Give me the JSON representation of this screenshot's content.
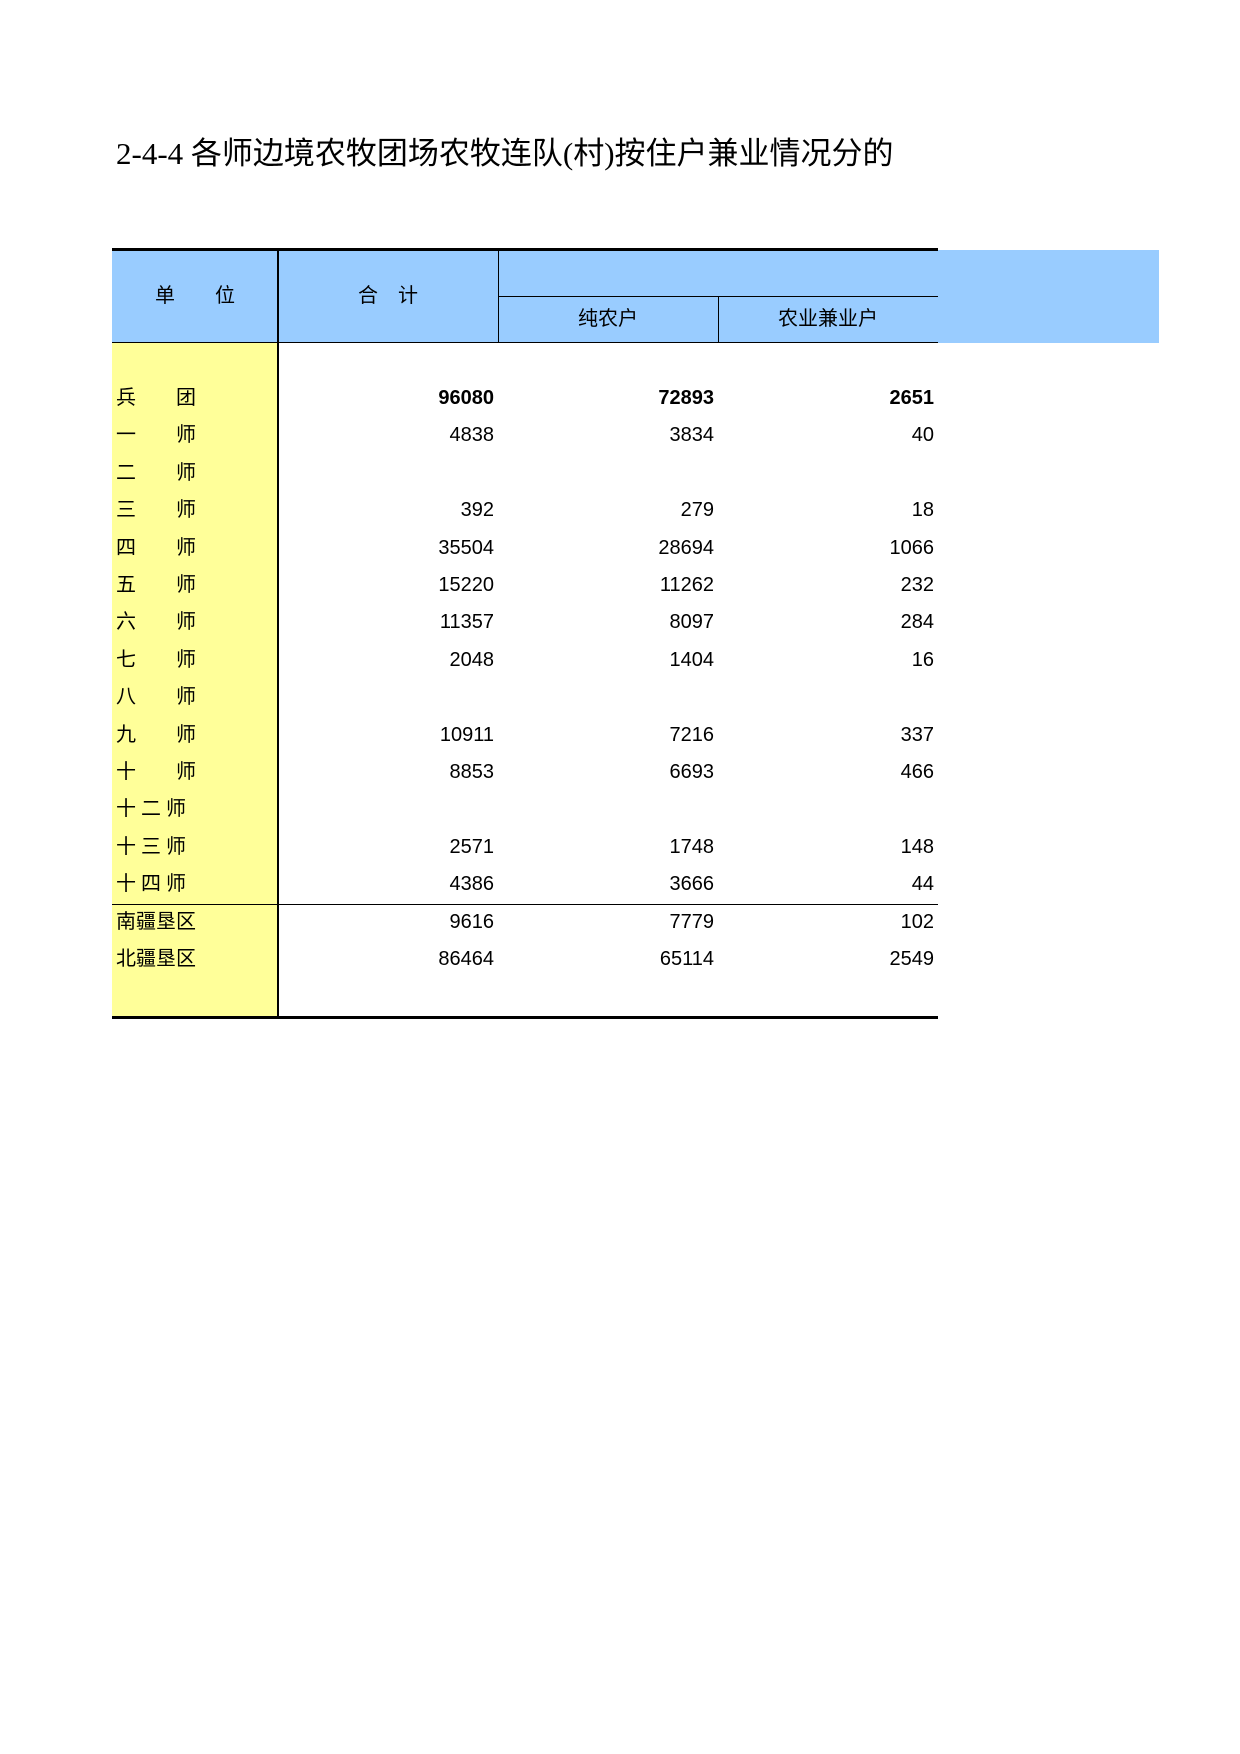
{
  "title": "2-4-4  各师边境农牧团场农牧连队(村)按住户兼业情况分的",
  "table": {
    "header": {
      "unit": "单　　位",
      "total": "合　计",
      "pure": "纯农户",
      "part": "农业兼业户"
    },
    "rows": [
      [
        "兵　　团",
        96080,
        72893,
        2651
      ],
      [
        "一　　师",
        4838,
        3834,
        40
      ],
      [
        "二　　师",
        null,
        null,
        null
      ],
      [
        "三　　师",
        392,
        279,
        18
      ],
      [
        "四　　师",
        35504,
        28694,
        1066
      ],
      [
        "五　　师",
        15220,
        11262,
        232
      ],
      [
        "六　　师",
        11357,
        8097,
        284
      ],
      [
        "七　　师",
        2048,
        1404,
        16
      ],
      [
        "八　　师",
        null,
        null,
        null
      ],
      [
        "九　　师",
        10911,
        7216,
        337
      ],
      [
        "十　　师",
        8853,
        6693,
        466
      ],
      [
        "十 二 师",
        null,
        null,
        null
      ],
      [
        "十 三 师",
        2571,
        1748,
        148
      ],
      [
        "十 四 师",
        4386,
        3666,
        44
      ],
      [
        "南疆垦区",
        9616,
        7779,
        102
      ],
      [
        "北疆垦区",
        86464,
        65114,
        2549
      ]
    ]
  }
}
